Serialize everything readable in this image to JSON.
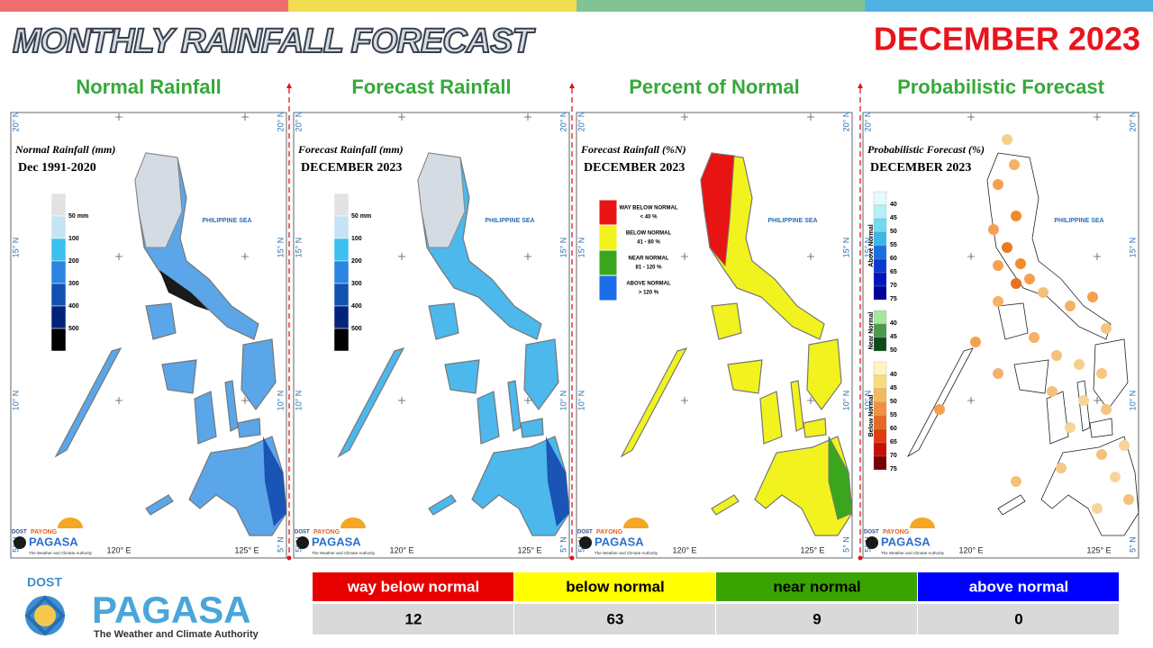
{
  "header": {
    "title": "MONTHLY RAINFALL FORECAST",
    "period": "DECEMBER 2023"
  },
  "panels": [
    {
      "title": "Normal Rainfall",
      "map_title": "Normal Rainfall (mm)",
      "map_subtitle": "Dec 1991-2020",
      "legend": [
        "50 mm",
        "100",
        "200",
        "300",
        "400",
        "500"
      ]
    },
    {
      "title": "Forecast Rainfall",
      "map_title": "Forecast Rainfall (mm)",
      "map_subtitle": "DECEMBER 2023",
      "legend": [
        "50 mm",
        "100",
        "200",
        "300",
        "400",
        "500"
      ]
    },
    {
      "title": "Percent of Normal",
      "map_title": "Forecast Rainfall (%N)",
      "map_subtitle": "DECEMBER 2023",
      "legend": [
        {
          "label": "WAY BELOW NORMAL",
          "range": "< 40 %"
        },
        {
          "label": "BELOW NORMAL",
          "range": "41 - 80 %"
        },
        {
          "label": "NEAR NORMAL",
          "range": "81 - 120 %"
        },
        {
          "label": "ABOVE NORMAL",
          "range": "> 120 %"
        }
      ]
    },
    {
      "title": "Probabilistic Forecast",
      "map_title": "Probabilistic Forecast (%)",
      "map_subtitle": "DECEMBER 2023",
      "legend": [
        {
          "label": "Above Normal",
          "levels": [
            40,
            45,
            50,
            55,
            60,
            65,
            70,
            75
          ]
        },
        {
          "label": "Near Normal",
          "levels": [
            40,
            45,
            50
          ]
        },
        {
          "label": "Below Normal",
          "levels": [
            40,
            45,
            50,
            55,
            60,
            65,
            70,
            75
          ]
        }
      ]
    }
  ],
  "map_axes": {
    "sea_label": "PHILIPPINE SEA",
    "lat_labels": [
      "20° N",
      "15° N",
      "10° N",
      "5° N"
    ],
    "lon_labels": [
      "120° E",
      "125° E"
    ]
  },
  "logos": {
    "small": {
      "agency": "DOST",
      "brand_top": "PAYONG",
      "brand": "PAGASA",
      "tagline": "The Weather and Climate Authority"
    },
    "main": {
      "agency": "DOST",
      "brand": "PAGASA",
      "tagline": "The Weather and Climate Authority"
    }
  },
  "summary_table": {
    "headers": [
      "way below normal",
      "below normal",
      "near normal",
      "above normal"
    ],
    "counts": [
      12,
      63,
      9,
      0
    ]
  }
}
